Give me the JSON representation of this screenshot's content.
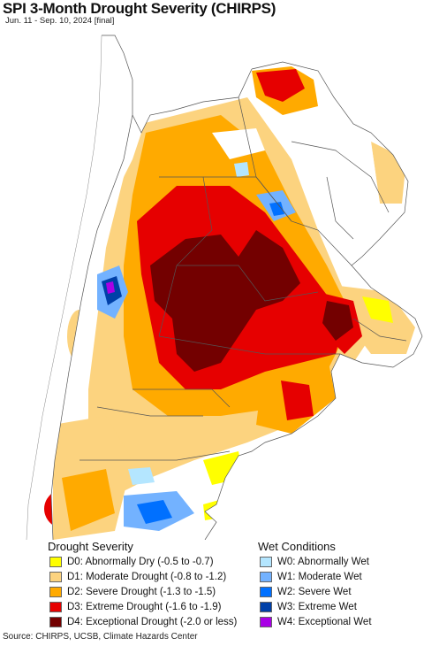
{
  "header": {
    "title": "SPI 3-Month Drought Severity (CHIRPS)",
    "subtitle": "Jun. 11 - Sep. 10, 2024 [final]"
  },
  "legend": {
    "drought_title": "Drought Severity",
    "wet_title": "Wet Conditions",
    "drought": [
      {
        "label": "D0: Abnormally Dry (-0.5 to -0.7)",
        "color": "#ffff00"
      },
      {
        "label": "D1: Moderate Drought (-0.8 to -1.2)",
        "color": "#fcd37f"
      },
      {
        "label": "D2: Severe Drought (-1.3 to -1.5)",
        "color": "#ffaa00"
      },
      {
        "label": "D3: Extreme Drought (-1.6 to -1.9)",
        "color": "#e60000"
      },
      {
        "label": "D4: Exceptional Drought (-2.0 or less)",
        "color": "#730000"
      }
    ],
    "wet": [
      {
        "label": "W0: Abnormally Wet",
        "color": "#b4e6ff"
      },
      {
        "label": "W1: Moderate Wet",
        "color": "#73b2ff"
      },
      {
        "label": "W2: Severe Wet",
        "color": "#0070ff"
      },
      {
        "label": "W3: Extreme Wet",
        "color": "#0040a8"
      },
      {
        "label": "W4: Exceptional Wet",
        "color": "#a900e6"
      }
    ]
  },
  "footer": {
    "source": "Source: CHIRPS, UCSB, Climate Hazards Center"
  }
}
